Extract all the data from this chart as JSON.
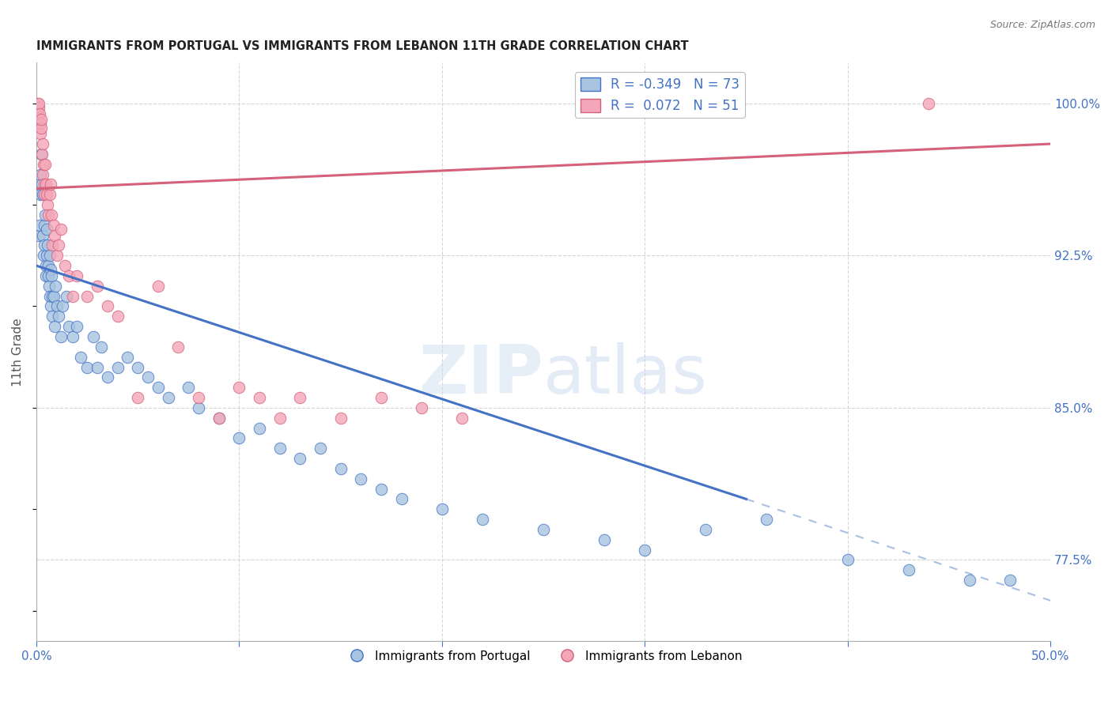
{
  "title": "IMMIGRANTS FROM PORTUGAL VS IMMIGRANTS FROM LEBANON 11TH GRADE CORRELATION CHART",
  "source": "Source: ZipAtlas.com",
  "ylabel": "11th Grade",
  "xlim": [
    0.0,
    50.0
  ],
  "ylim": [
    73.5,
    102.0
  ],
  "x_ticks": [
    0.0,
    10.0,
    20.0,
    30.0,
    40.0,
    50.0
  ],
  "x_tick_labels": [
    "0.0%",
    "",
    "",
    "",
    "",
    "50.0%"
  ],
  "y_tick_labels": [
    "77.5%",
    "85.0%",
    "92.5%",
    "100.0%"
  ],
  "y_ticks": [
    77.5,
    85.0,
    92.5,
    100.0
  ],
  "legend_label1": "Immigrants from Portugal",
  "legend_label2": "Immigrants from Lebanon",
  "portugal_color": "#a8c4e0",
  "lebanon_color": "#f4a7b9",
  "portugal_line_color": "#4472c4",
  "lebanon_line_color": "#d4607a",
  "background_color": "#ffffff",
  "grid_color": "#cccccc",
  "watermark": "ZIPatlas",
  "portugal_x": [
    0.1,
    0.15,
    0.18,
    0.2,
    0.25,
    0.28,
    0.3,
    0.32,
    0.35,
    0.38,
    0.4,
    0.42,
    0.45,
    0.48,
    0.5,
    0.52,
    0.55,
    0.58,
    0.6,
    0.62,
    0.65,
    0.68,
    0.7,
    0.72,
    0.75,
    0.78,
    0.8,
    0.85,
    0.9,
    0.95,
    1.0,
    1.1,
    1.2,
    1.3,
    1.5,
    1.6,
    1.8,
    2.0,
    2.2,
    2.5,
    2.8,
    3.0,
    3.2,
    3.5,
    4.0,
    4.5,
    5.0,
    5.5,
    6.0,
    6.5,
    7.5,
    8.0,
    9.0,
    10.0,
    11.0,
    12.0,
    13.0,
    14.0,
    15.0,
    16.0,
    17.0,
    18.0,
    20.0,
    22.0,
    25.0,
    28.0,
    30.0,
    33.0,
    36.0,
    40.0,
    43.0,
    46.0,
    48.0
  ],
  "portugal_y": [
    93.5,
    94.0,
    96.5,
    95.5,
    97.5,
    96.0,
    95.5,
    93.5,
    92.5,
    94.0,
    93.0,
    94.5,
    92.0,
    91.5,
    93.8,
    92.5,
    93.0,
    91.5,
    92.0,
    91.0,
    92.5,
    90.5,
    91.8,
    90.0,
    91.5,
    90.5,
    89.5,
    90.5,
    89.0,
    91.0,
    90.0,
    89.5,
    88.5,
    90.0,
    90.5,
    89.0,
    88.5,
    89.0,
    87.5,
    87.0,
    88.5,
    87.0,
    88.0,
    86.5,
    87.0,
    87.5,
    87.0,
    86.5,
    86.0,
    85.5,
    86.0,
    85.0,
    84.5,
    83.5,
    84.0,
    83.0,
    82.5,
    83.0,
    82.0,
    81.5,
    81.0,
    80.5,
    80.0,
    79.5,
    79.0,
    78.5,
    78.0,
    79.0,
    79.5,
    77.5,
    77.0,
    76.5,
    76.5
  ],
  "lebanon_x": [
    0.05,
    0.08,
    0.1,
    0.12,
    0.15,
    0.18,
    0.2,
    0.22,
    0.25,
    0.28,
    0.3,
    0.32,
    0.35,
    0.38,
    0.4,
    0.42,
    0.45,
    0.5,
    0.55,
    0.6,
    0.65,
    0.7,
    0.75,
    0.8,
    0.85,
    0.9,
    1.0,
    1.1,
    1.2,
    1.4,
    1.6,
    1.8,
    2.0,
    2.5,
    3.0,
    3.5,
    4.0,
    5.0,
    6.0,
    7.0,
    8.0,
    9.0,
    10.0,
    11.0,
    12.0,
    13.0,
    15.0,
    17.0,
    19.0,
    21.0,
    44.0
  ],
  "lebanon_y": [
    100.0,
    99.5,
    99.8,
    100.0,
    99.5,
    98.5,
    99.0,
    98.8,
    99.2,
    97.5,
    98.0,
    96.5,
    97.0,
    96.0,
    95.5,
    97.0,
    96.0,
    95.5,
    95.0,
    94.5,
    95.5,
    96.0,
    94.5,
    93.0,
    94.0,
    93.5,
    92.5,
    93.0,
    93.8,
    92.0,
    91.5,
    90.5,
    91.5,
    90.5,
    91.0,
    90.0,
    89.5,
    85.5,
    91.0,
    88.0,
    85.5,
    84.5,
    86.0,
    85.5,
    84.5,
    85.5,
    84.5,
    85.5,
    85.0,
    84.5,
    100.0
  ],
  "port_line_x0": 0.0,
  "port_line_y0": 92.0,
  "port_line_x1": 35.0,
  "port_line_y1": 80.5,
  "port_dash_x0": 35.0,
  "port_dash_y0": 80.5,
  "port_dash_x1": 50.0,
  "port_dash_y1": 75.5,
  "leb_line_x0": 0.0,
  "leb_line_y0": 95.8,
  "leb_line_x1": 50.0,
  "leb_line_y1": 98.0
}
